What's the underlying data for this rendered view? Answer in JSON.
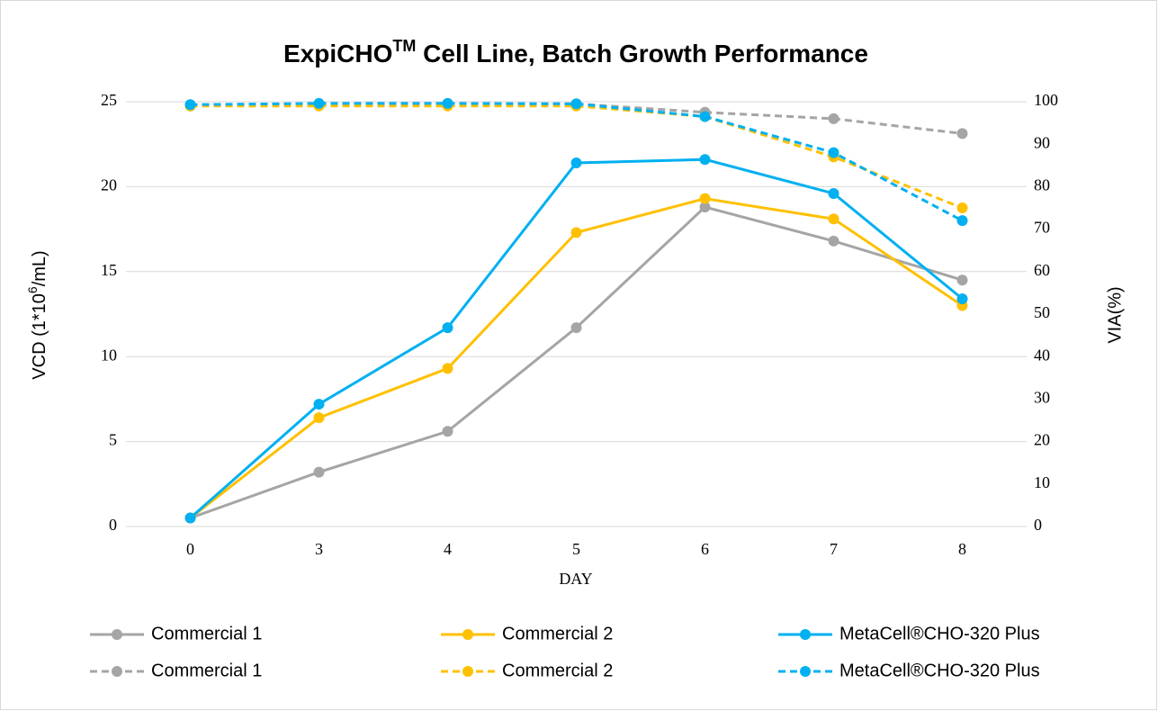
{
  "chart_data": {
    "type": "line",
    "title": {
      "text": "ExpiCHO",
      "superscript": "TM",
      "rest": " Cell Line, Batch Growth Performance"
    },
    "y_label": {
      "text": "VCD (1*10",
      "superscript": "6",
      "rest": "/mL)"
    },
    "y2_label": "VIA(%)",
    "x_label": "DAY",
    "categories": [
      "0",
      "3",
      "4",
      "5",
      "6",
      "7",
      "8"
    ],
    "ylim": [
      0,
      25
    ],
    "yticks": [
      0,
      5,
      10,
      15,
      20,
      25
    ],
    "y2lim": [
      0,
      100
    ],
    "y2ticks": [
      0,
      10,
      20,
      30,
      40,
      50,
      60,
      70,
      80,
      90,
      100
    ],
    "grid": true,
    "legend": "bottom",
    "series": [
      {
        "name": "Commercial 1",
        "color": "#a5a5a5",
        "dash": false,
        "values": [
          0.5,
          3.2,
          5.6,
          11.7,
          18.8,
          16.8,
          14.5
        ]
      },
      {
        "name": "Commercial 2",
        "color": "#ffc000",
        "dash": false,
        "values": [
          0.5,
          6.4,
          9.3,
          17.3,
          19.3,
          18.1,
          13.0
        ]
      },
      {
        "name": "MetaCell®CHO-320 Plus",
        "color": "#00b0f0",
        "dash": false,
        "values": [
          0.5,
          7.2,
          11.7,
          21.4,
          21.6,
          19.6,
          13.4
        ]
      },
      {
        "name": "Commercial 1",
        "color": "#a5a5a5",
        "dash": true,
        "axis": "y2",
        "values": [
          99,
          99.5,
          99.5,
          99.5,
          97.5,
          96,
          92.5
        ]
      },
      {
        "name": "Commercial 2",
        "color": "#ffc000",
        "dash": true,
        "axis": "y2",
        "values": [
          99,
          99,
          99,
          99,
          96.5,
          87,
          75
        ]
      },
      {
        "name": "MetaCell®CHO-320 Plus",
        "color": "#00b0f0",
        "dash": true,
        "axis": "y2",
        "values": [
          99.3,
          99.6,
          99.6,
          99.5,
          96.5,
          88,
          72
        ]
      }
    ]
  }
}
